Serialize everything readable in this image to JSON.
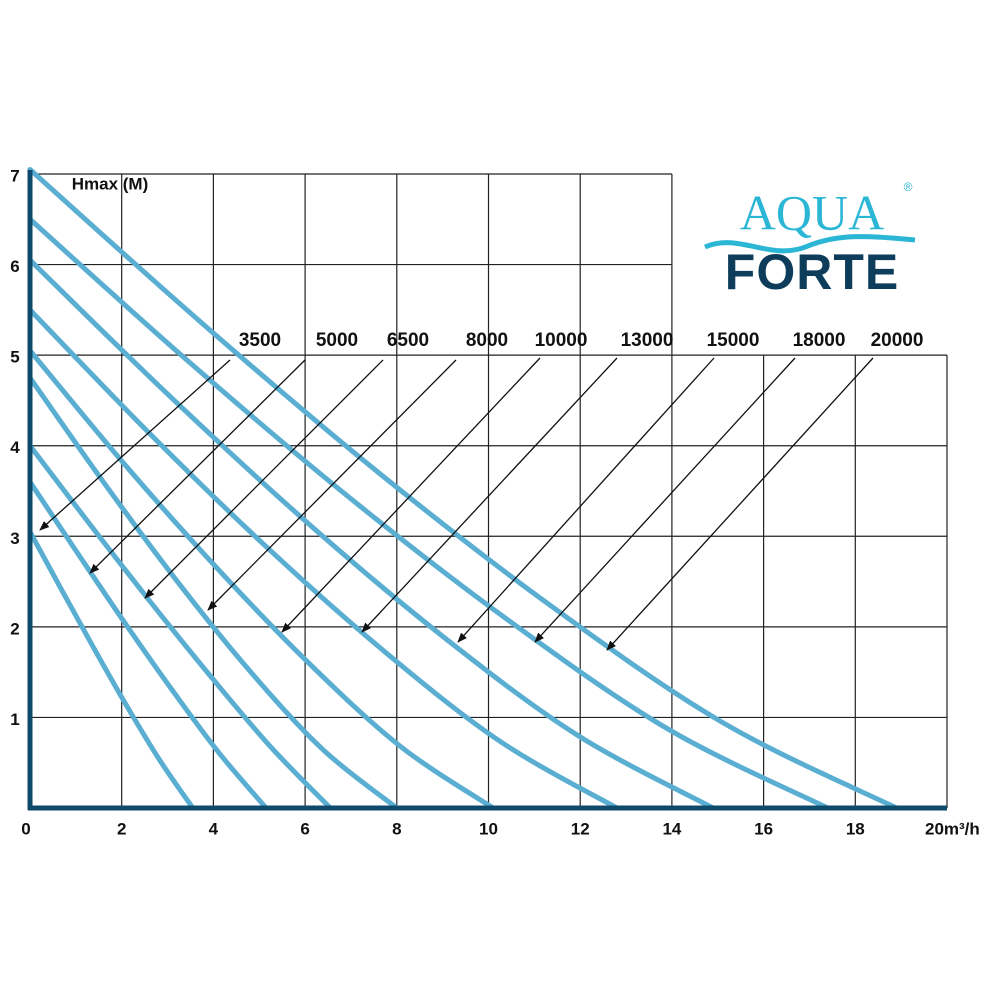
{
  "chart_data": {
    "type": "line",
    "y_label": "Hmax (M)",
    "logo_top": "AQUA",
    "logo_bottom": "FORTE",
    "logo_mark": "®",
    "xlim": [
      0,
      20
    ],
    "ylim": [
      0,
      7
    ],
    "xticks": [
      0,
      2,
      4,
      6,
      8,
      10,
      12,
      14,
      16,
      18,
      {
        "value": 20,
        "label": "20m³/h"
      }
    ],
    "yticks": [
      1,
      2,
      3,
      4,
      5,
      6,
      7
    ],
    "grid": true,
    "color": "#5aaed2",
    "series": [
      {
        "name": "3500",
        "x": [
          0,
          0.71,
          1.42,
          2.13,
          2.84,
          3.55
        ],
        "values": [
          3.05,
          2.39,
          1.74,
          1.11,
          0.52,
          0
        ]
      },
      {
        "name": "5000",
        "x": [
          0,
          1.03,
          2.06,
          3.09,
          4.12,
          5.15
        ],
        "values": [
          3.6,
          2.82,
          2.05,
          1.31,
          0.61,
          0
        ]
      },
      {
        "name": "6500",
        "x": [
          0,
          1.31,
          2.62,
          3.93,
          5.24,
          6.55
        ],
        "values": [
          4.0,
          3.13,
          2.28,
          1.46,
          0.68,
          0
        ]
      },
      {
        "name": "8000",
        "x": [
          0,
          1.6,
          3.2,
          4.8,
          6.4,
          8.0
        ],
        "values": [
          4.75,
          3.6,
          2.51,
          1.51,
          0.64,
          0
        ]
      },
      {
        "name": "10000",
        "x": [
          0,
          2.02,
          4.04,
          6.06,
          8.08,
          10.1
        ],
        "values": [
          5.05,
          3.82,
          2.67,
          1.61,
          0.68,
          0
        ]
      },
      {
        "name": "13000",
        "x": [
          0,
          2.56,
          5.12,
          7.68,
          10.24,
          12.8
        ],
        "values": [
          5.5,
          4.16,
          2.9,
          1.75,
          0.74,
          0
        ]
      },
      {
        "name": "15000",
        "x": [
          0,
          2.98,
          5.96,
          8.94,
          11.92,
          14.9
        ],
        "values": [
          6.05,
          4.58,
          3.19,
          1.92,
          0.81,
          0
        ]
      },
      {
        "name": "18000",
        "x": [
          0,
          3.48,
          6.96,
          10.44,
          13.92,
          17.4
        ],
        "values": [
          6.5,
          4.92,
          3.43,
          2.07,
          0.87,
          0
        ]
      },
      {
        "name": "20000",
        "x": [
          0,
          3.78,
          7.56,
          11.34,
          15.12,
          18.9
        ],
        "values": [
          7.05,
          5.34,
          3.72,
          2.24,
          0.94,
          0
        ]
      }
    ]
  }
}
